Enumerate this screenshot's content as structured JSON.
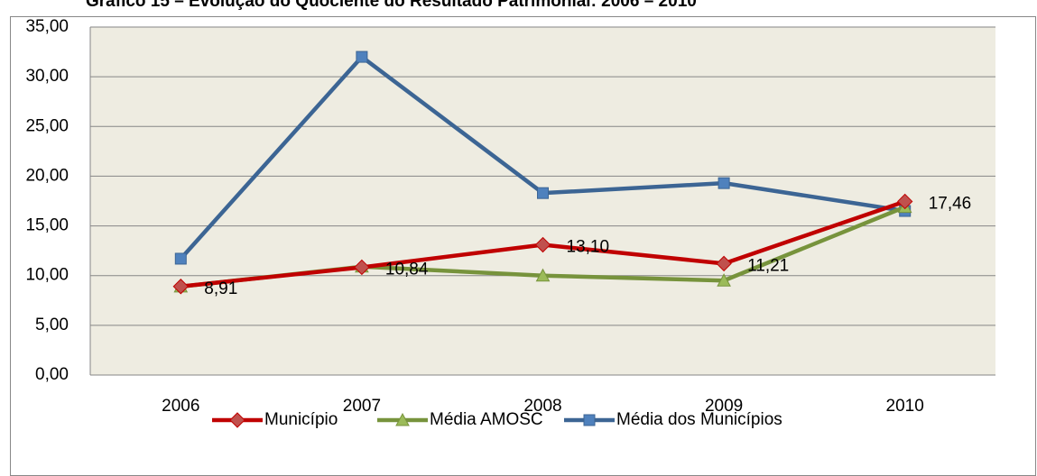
{
  "chart_data": {
    "type": "line",
    "title": "Gráfico 15 – Evolução do Quociente do Resultado Patrimonial: 2006 – 2010",
    "categories": [
      "2006",
      "2007",
      "2008",
      "2009",
      "2010"
    ],
    "series": [
      {
        "name": "Município",
        "color": "#c00000",
        "marker": "diamond",
        "marker_color": "#c0504d",
        "values": [
          8.91,
          10.84,
          13.1,
          11.21,
          17.46
        ],
        "value_labels": [
          "8,91",
          "10,84",
          "13,10",
          "11,21",
          "17,46"
        ]
      },
      {
        "name": "Média AMOSC",
        "color": "#77933c",
        "marker": "triangle",
        "marker_color": "#9bbb59",
        "values": [
          8.9,
          10.9,
          10.0,
          9.5,
          16.9
        ]
      },
      {
        "name": "Média dos Municípios",
        "color": "#3c6594",
        "marker": "square",
        "marker_color": "#4f81bd",
        "values": [
          11.7,
          32.0,
          18.3,
          19.3,
          16.5
        ]
      }
    ],
    "ylim": [
      0,
      35
    ],
    "yticks": [
      {
        "value": 0,
        "label": "0,00"
      },
      {
        "value": 5,
        "label": "5,00"
      },
      {
        "value": 10,
        "label": "10,00"
      },
      {
        "value": 15,
        "label": "15,00"
      },
      {
        "value": 20,
        "label": "20,00"
      },
      {
        "value": 25,
        "label": "25,00"
      },
      {
        "value": 30,
        "label": "30,00"
      },
      {
        "value": 35,
        "label": "35,00"
      }
    ],
    "grid": true,
    "legend": "bottom",
    "plot_background": "#eeece1"
  }
}
